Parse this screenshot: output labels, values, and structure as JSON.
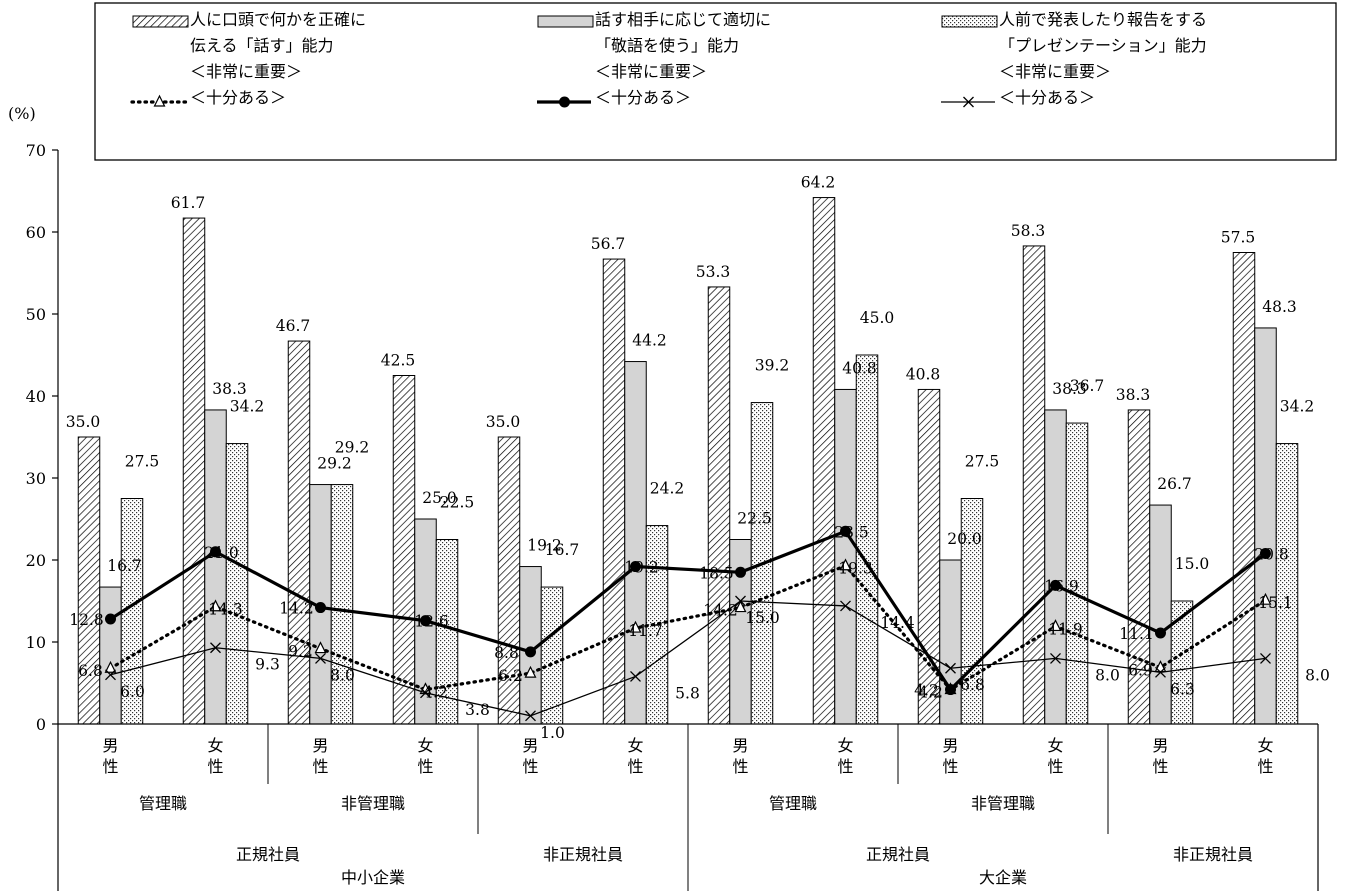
{
  "chart_data": {
    "type": "bar",
    "ylabel": "(%)",
    "ylim": [
      0,
      70
    ],
    "yticks": [
      "0",
      "10",
      "20",
      "30",
      "40",
      "50",
      "60",
      "70"
    ],
    "categories": [
      {
        "label": [
          "男",
          "性"
        ]
      },
      {
        "label": [
          "女",
          "性"
        ]
      },
      {
        "label": [
          "男",
          "性"
        ]
      },
      {
        "label": [
          "女",
          "性"
        ]
      },
      {
        "label": [
          "男",
          "性"
        ]
      },
      {
        "label": [
          "女",
          "性"
        ]
      },
      {
        "label": [
          "男",
          "性"
        ]
      },
      {
        "label": [
          "女",
          "性"
        ]
      },
      {
        "label": [
          "男",
          "性"
        ]
      },
      {
        "label": [
          "女",
          "性"
        ]
      },
      {
        "label": [
          "男",
          "性"
        ]
      },
      {
        "label": [
          "女",
          "性"
        ]
      }
    ],
    "group_rows": [
      [
        {
          "label": "管理職",
          "span": [
            0,
            1
          ]
        },
        {
          "label": "非管理職",
          "span": [
            2,
            3
          ]
        },
        {
          "label": "",
          "span": [
            4,
            5
          ]
        },
        {
          "label": "管理職",
          "span": [
            6,
            7
          ]
        },
        {
          "label": "非管理職",
          "span": [
            8,
            9
          ]
        },
        {
          "label": "",
          "span": [
            10,
            11
          ]
        }
      ],
      [
        {
          "label": "正規社員",
          "span": [
            0,
            3
          ]
        },
        {
          "label": "非正規社員",
          "span": [
            4,
            5
          ]
        },
        {
          "label": "正規社員",
          "span": [
            6,
            9
          ]
        },
        {
          "label": "非正規社員",
          "span": [
            10,
            11
          ]
        }
      ],
      [
        {
          "label": "中小企業",
          "span": [
            0,
            5
          ]
        },
        {
          "label": "大企業",
          "span": [
            6,
            11
          ]
        }
      ]
    ],
    "bar_series": [
      {
        "name": "人に口頭で何かを正確に伝える「話す」能力＜非常に重要＞",
        "values": [
          35.0,
          61.7,
          46.7,
          42.5,
          35.0,
          56.7,
          53.3,
          64.2,
          40.8,
          58.3,
          38.3,
          57.5
        ],
        "pattern": "diagonal-hatch"
      },
      {
        "name": "話す相手に応じて適切に「敬語を使う」能力＜非常に重要＞",
        "values": [
          16.7,
          38.3,
          29.2,
          25.0,
          19.2,
          44.2,
          22.5,
          40.8,
          20.0,
          38.3,
          26.7,
          48.3
        ],
        "pattern": "solid-gray",
        "color": "#d4d4d4"
      },
      {
        "name": "人前で発表したり報告をする「プレゼンテーション」能力＜非常に重要＞",
        "values": [
          27.5,
          34.2,
          29.2,
          22.5,
          16.7,
          24.2,
          39.2,
          45.0,
          27.5,
          36.7,
          15.0,
          34.2
        ],
        "pattern": "dots"
      }
    ],
    "line_series": [
      {
        "name": "＜十分ある＞",
        "linked_bar": 0,
        "style": "dotted-triangle",
        "values": [
          6.8,
          14.3,
          9.2,
          4.2,
          6.2,
          11.7,
          14.2,
          19.3,
          4.2,
          11.9,
          6.9,
          15.1
        ]
      },
      {
        "name": "＜十分ある＞",
        "linked_bar": 1,
        "style": "thick-circle",
        "values": [
          12.8,
          21.0,
          14.2,
          12.6,
          8.8,
          19.2,
          18.5,
          23.5,
          4.2,
          16.9,
          11.1,
          20.8
        ]
      },
      {
        "name": "＜十分ある＞",
        "linked_bar": 2,
        "style": "thin-cross",
        "values": [
          6.0,
          9.3,
          8.0,
          3.8,
          1.0,
          5.8,
          15.0,
          14.4,
          6.8,
          8.0,
          6.3,
          8.0
        ]
      }
    ],
    "legend": {
      "placement": "top",
      "items": [
        {
          "lines": [
            "人に口頭で何かを正確に",
            "伝える「話す」能力",
            "＜非常に重要＞",
            "＜十分ある＞"
          ]
        },
        {
          "lines": [
            "話す相手に応じて適切に",
            "「敬語を使う」能力",
            "＜非常に重要＞",
            "＜十分ある＞"
          ]
        },
        {
          "lines": [
            "人前で発表したり報告をする",
            "「プレゼンテーション」能力",
            "＜非常に重要＞",
            "＜十分ある＞"
          ]
        }
      ]
    }
  }
}
